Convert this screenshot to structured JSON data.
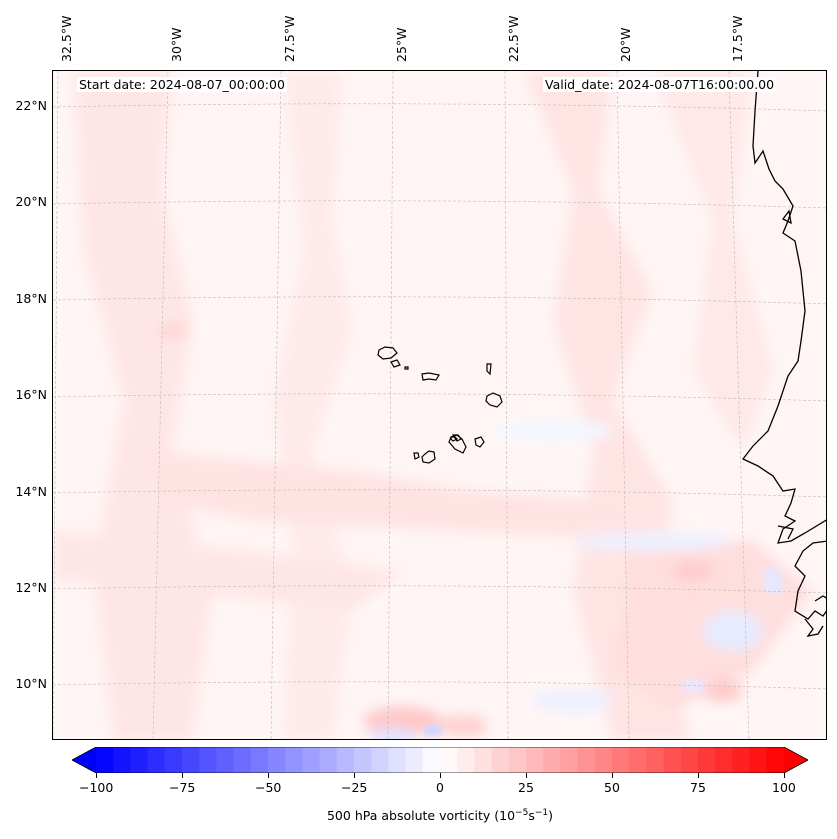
{
  "map": {
    "start_date": "Start date: 2024-08-07_00:00:00",
    "valid_date": "Valid_date: 2024-08-07T16:00:00.00",
    "lon_labels": [
      "32.5°W",
      "30°W",
      "27.5°W",
      "25°W",
      "22.5°W",
      "20°W",
      "17.5°W"
    ],
    "lat_labels": [
      "22°N",
      "20°N",
      "18°N",
      "16°N",
      "14°N",
      "12°N",
      "10°N"
    ],
    "colors": {
      "positive": "#ff0000",
      "negative": "#0000ff",
      "neutral": "#ffffff",
      "coast": "#000000"
    }
  },
  "colorbar": {
    "ticks": [
      "−100",
      "−75",
      "−50",
      "−25",
      "0",
      "25",
      "50",
      "75",
      "100"
    ],
    "min": -100,
    "max": 100,
    "label_main": "500 hPa absolute vorticity (10",
    "label_exp1": "−5",
    "label_mid": "s",
    "label_exp2": "−1",
    "label_end": ")"
  }
}
